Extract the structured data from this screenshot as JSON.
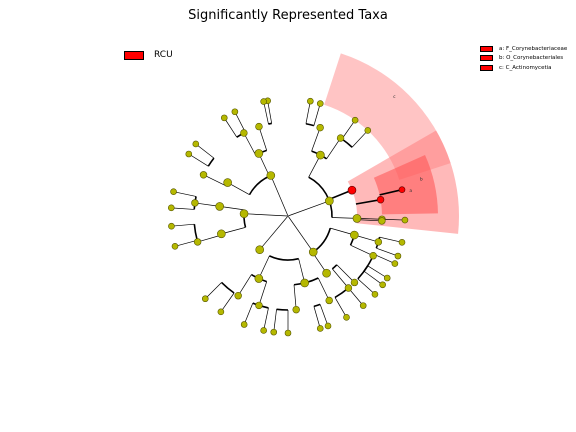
{
  "title": "Significantly Represented Taxa",
  "legend": {
    "group": {
      "label": "RCU",
      "color": "#ff0000"
    },
    "taxa": [
      {
        "label": "a: F_Corynebacteriaceae",
        "color": "#ff0000"
      },
      {
        "label": "b: O_Corynebacteriales",
        "color": "#ff0000"
      },
      {
        "label": "c: C_Actinomycetia",
        "color": "#ff0000"
      }
    ]
  },
  "clade_letters": {
    "c": "c",
    "b": "b",
    "a": "a"
  },
  "colors": {
    "node_fill": "#b5b800",
    "node_stroke": "#555500",
    "highlight_node": "#ff0000",
    "sector_outer": "#ffb0b0",
    "sector_mid": "#ff8080",
    "sector_inner": "#ff5050"
  }
}
